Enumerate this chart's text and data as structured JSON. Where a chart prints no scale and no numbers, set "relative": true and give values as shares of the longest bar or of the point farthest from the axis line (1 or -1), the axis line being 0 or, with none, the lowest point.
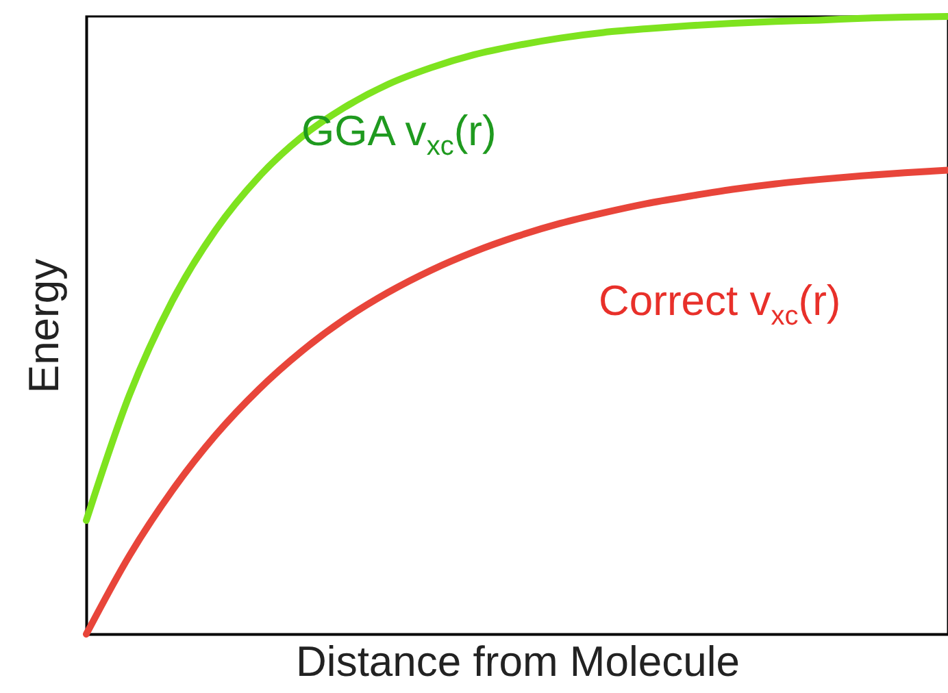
{
  "chart_data": {
    "type": "line",
    "relative": true,
    "xlabel": "Distance from Molecule",
    "ylabel": "Energy",
    "tick_labels": false,
    "categories": [
      null,
      null,
      null,
      null,
      null,
      null,
      null,
      null,
      null,
      null,
      null,
      null,
      null,
      null,
      null,
      null,
      null,
      null,
      null,
      null,
      null
    ],
    "series": [
      {
        "name": "GGA v$_{xc}$(r)",
        "color": "#7ee31f",
        "values": [
          0.184,
          0.387,
          0.54,
          0.654,
          0.74,
          0.805,
          0.853,
          0.89,
          0.917,
          0.938,
          0.953,
          0.965,
          0.974,
          0.98,
          0.985,
          0.989,
          0.992,
          0.994,
          0.997,
          0.999,
          1.0
        ]
      },
      {
        "name": "Correct v$_{xc}$(r)",
        "color": "#e8453a",
        "values": [
          0,
          0.127,
          0.233,
          0.322,
          0.396,
          0.458,
          0.51,
          0.553,
          0.589,
          0.619,
          0.644,
          0.665,
          0.682,
          0.697,
          0.709,
          0.72,
          0.729,
          0.736,
          0.742,
          0.747,
          0.751
        ]
      }
    ]
  }
}
